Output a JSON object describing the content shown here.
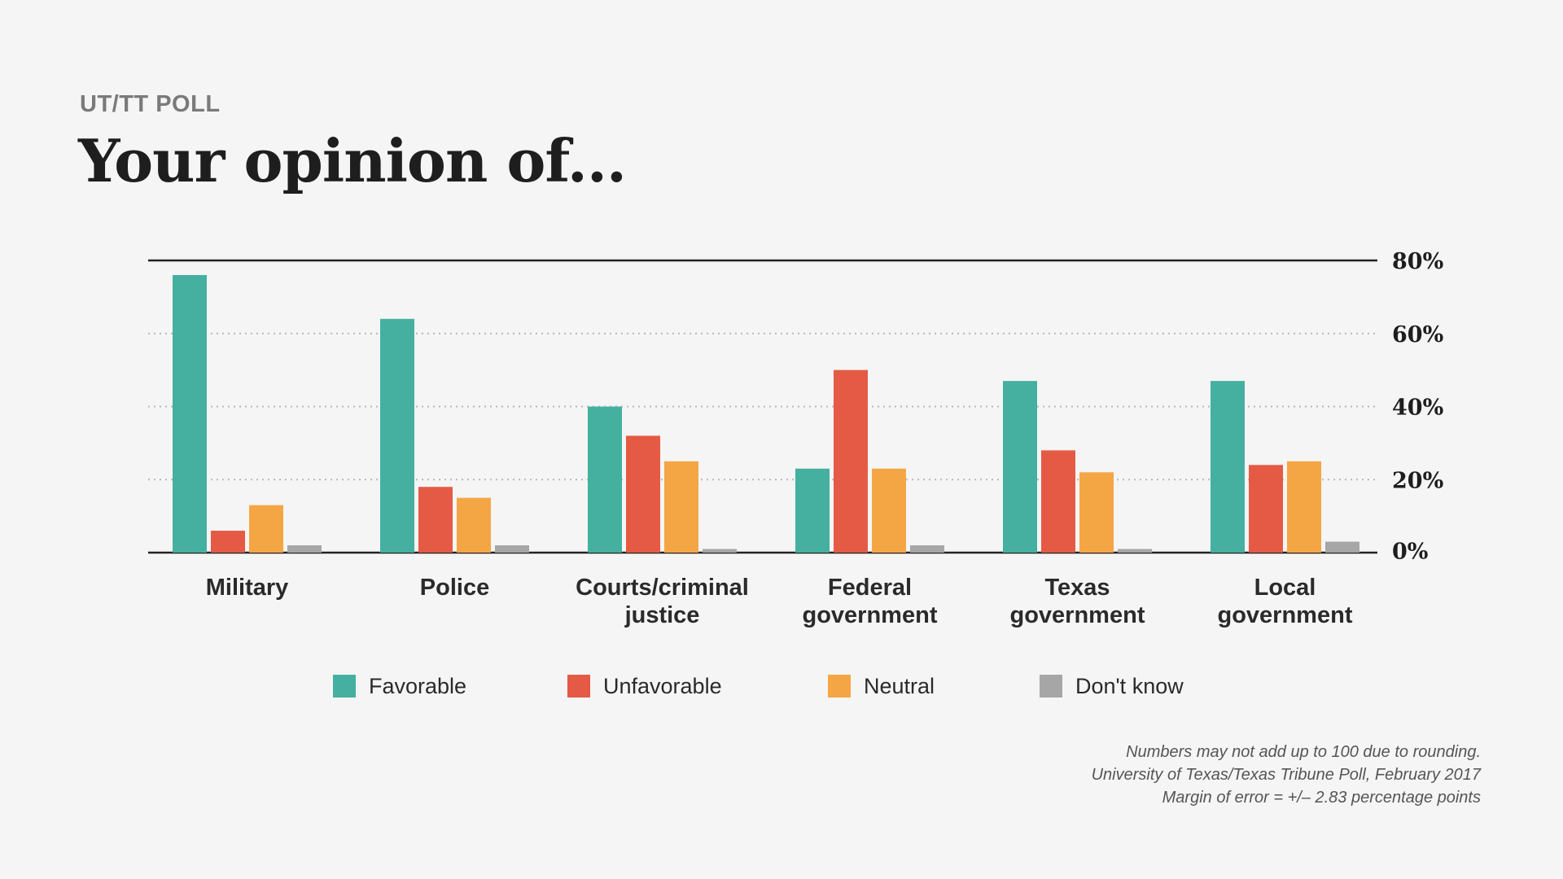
{
  "kicker": "UT/TT POLL",
  "title": "Your opinion of...",
  "notes": [
    "Numbers may not add up to 100 due to rounding.",
    "University of Texas/Texas Tribune Poll, February 2017",
    "Margin of error = +/– 2.83 percentage points"
  ],
  "chart_data": {
    "type": "bar",
    "categories": [
      [
        "Military"
      ],
      [
        "Police"
      ],
      [
        "Courts/criminal",
        "justice"
      ],
      [
        "Federal",
        "government"
      ],
      [
        "Texas",
        "government"
      ],
      [
        "Local",
        "government"
      ]
    ],
    "series": [
      {
        "name": "Favorable",
        "color": "#45b0a0",
        "values": [
          76,
          64,
          40,
          23,
          47,
          47
        ]
      },
      {
        "name": "Unfavorable",
        "color": "#e55a45",
        "values": [
          6,
          18,
          32,
          50,
          28,
          24
        ]
      },
      {
        "name": "Neutral",
        "color": "#f5a644",
        "values": [
          13,
          15,
          25,
          23,
          22,
          25
        ]
      },
      {
        "name": "Don't know",
        "color": "#a6a6a6",
        "values": [
          2,
          2,
          1,
          2,
          1,
          3
        ]
      }
    ],
    "yticks": [
      {
        "value": 0,
        "label": "0%"
      },
      {
        "value": 20,
        "label": "20%"
      },
      {
        "value": 40,
        "label": "40%"
      },
      {
        "value": 60,
        "label": "60%"
      },
      {
        "value": 80,
        "label": "80%"
      }
    ],
    "ylim": [
      0,
      80
    ],
    "grid": true,
    "axis_side": "right",
    "legend_position": "bottom"
  }
}
